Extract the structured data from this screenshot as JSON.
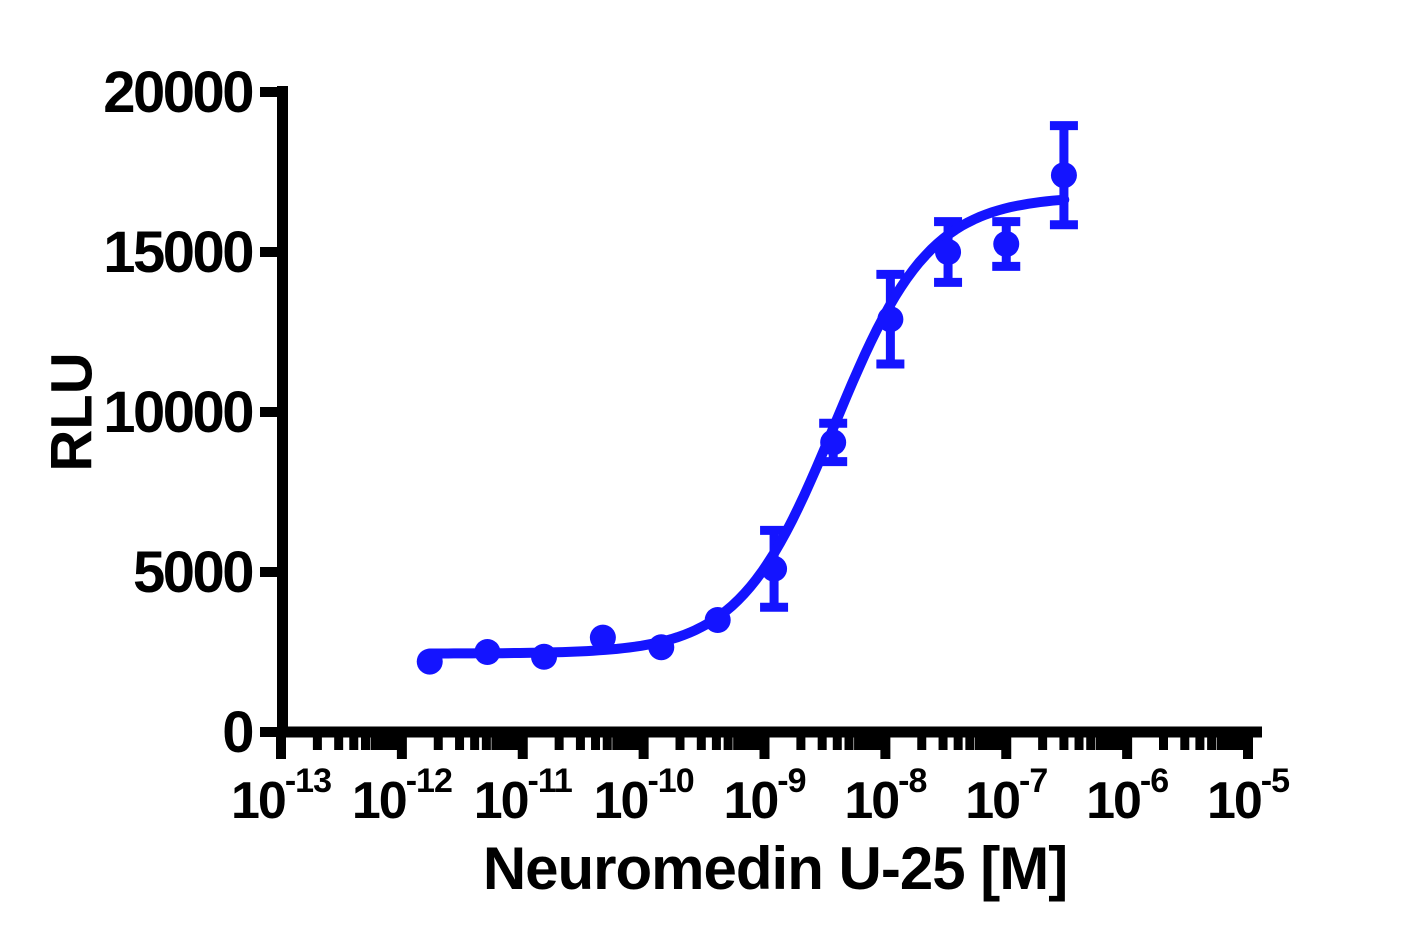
{
  "axis_color": "#000000",
  "background_color": "#ffffff",
  "chart_data": {
    "type": "scatter",
    "title": "",
    "xlabel": "Neuromedin U-25 [M]",
    "ylabel": "RLU",
    "x_scale": "log10",
    "x_tick_base": "10",
    "x_decade_ticks": [
      -13,
      -12,
      -11,
      -10,
      -9,
      -8,
      -7,
      -6,
      -5
    ],
    "x_minor_tick_mantissas": [
      2,
      3,
      4,
      5,
      6,
      7,
      8,
      9
    ],
    "xlim_log10": [
      -13,
      -5
    ],
    "ylim": [
      0,
      20000
    ],
    "y_ticks": [
      0,
      5000,
      10000,
      15000,
      20000
    ],
    "grid": false,
    "legend_position": "none",
    "series": [
      {
        "name": "Neuromedin U-25",
        "color": "#1414FF",
        "marker": "circle",
        "x_molar": [
          1.7e-12,
          5.1e-12,
          1.5e-11,
          4.6e-11,
          1.4e-10,
          4.1e-10,
          1.2e-09,
          3.7e-09,
          1.1e-08,
          3.3e-08,
          1e-07,
          3e-07
        ],
        "y_rlu": [
          2200,
          2500,
          2350,
          2950,
          2650,
          3500,
          5100,
          9050,
          12900,
          15000,
          15250,
          17400
        ],
        "y_err": [
          null,
          null,
          null,
          null,
          null,
          null,
          1200,
          600,
          1400,
          950,
          700,
          1550
        ]
      }
    ],
    "fit_curve": {
      "model": "4PL sigmoidal dose-response",
      "bottom": 2450,
      "top": 16750,
      "logEC50": -8.42,
      "hill": 1.1,
      "x_range_log10": [
        -11.77,
        -6.52
      ]
    }
  }
}
